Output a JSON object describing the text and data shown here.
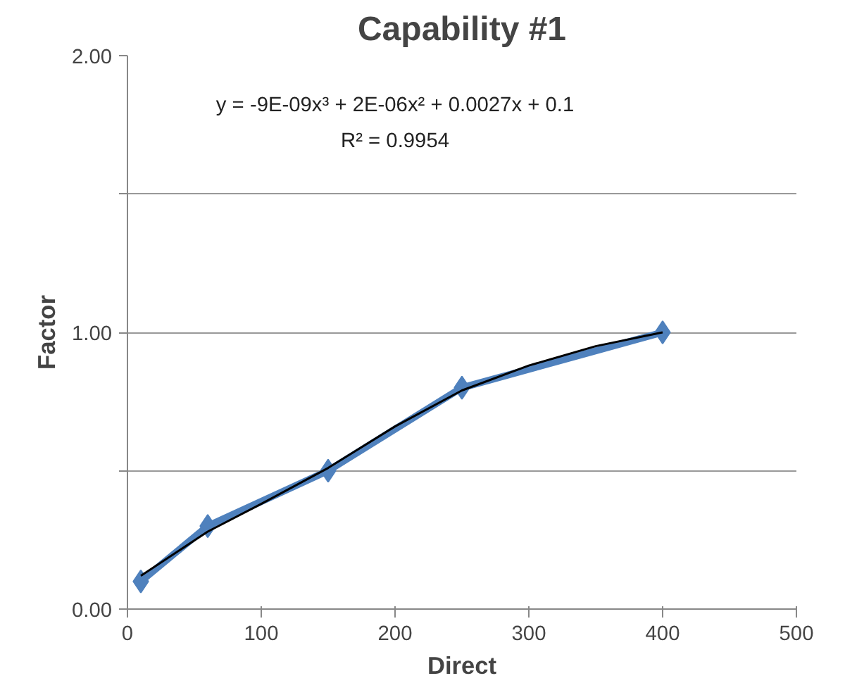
{
  "chart_data": {
    "type": "line",
    "title": "Capability #1",
    "xlabel": "Direct",
    "ylabel": "Factor",
    "annotations": [
      "y = -9E-09x³ + 2E-06x² + 0.0027x + 0.1",
      "R² = 0.9954"
    ],
    "xlim": [
      0,
      500
    ],
    "xticks": [
      0,
      100,
      200,
      300,
      400,
      500
    ],
    "ylim": [
      0,
      2
    ],
    "yticks": [
      {
        "value": 0,
        "label": "0.00"
      },
      {
        "value": 0.5,
        "label": null
      },
      {
        "value": 1,
        "label": "1.00"
      },
      {
        "value": 1.5,
        "label": null
      },
      {
        "value": 2,
        "label": "2.00"
      }
    ],
    "grid": "y",
    "series": [
      {
        "color": "#4f81bd",
        "marker": "diamond",
        "x": [
          10,
          60,
          150,
          250,
          400
        ],
        "values": [
          0.1,
          0.3,
          0.5,
          0.8,
          1.0
        ]
      },
      {
        "color": "#000000",
        "marker": "none",
        "x": [
          10,
          60,
          100,
          150,
          200,
          250,
          300,
          350,
          400
        ],
        "values": [
          0.12,
          0.28,
          0.38,
          0.51,
          0.66,
          0.79,
          0.88,
          0.95,
          1.0
        ]
      }
    ]
  }
}
